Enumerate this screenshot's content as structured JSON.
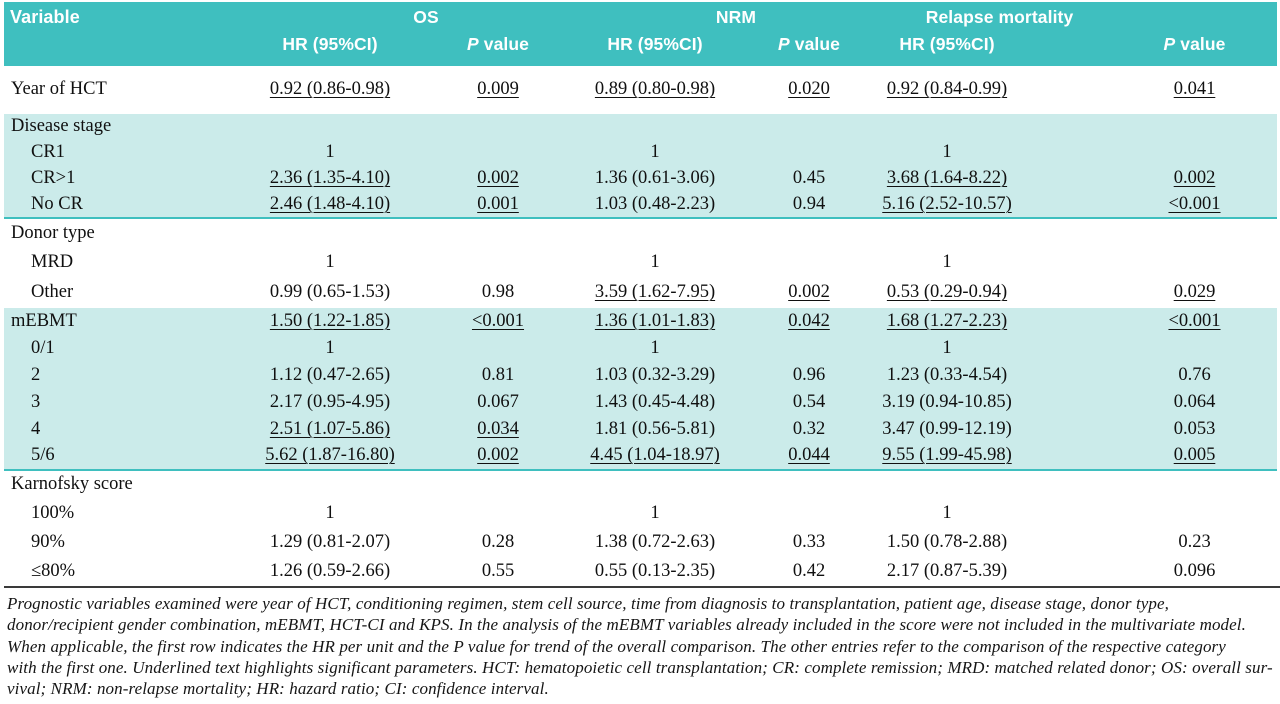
{
  "table": {
    "header": {
      "variable_label": "Variable",
      "groups": [
        {
          "label": "OS"
        },
        {
          "label": "NRM"
        },
        {
          "label": "Relapse mortality"
        }
      ],
      "hr_label": "HR (95%CI)",
      "p_italic": "P",
      "p_rest": " value"
    },
    "sections": [
      {
        "bg": "white",
        "end_rule": false,
        "rows": [
          {
            "label": "Year of HCT",
            "indent": false,
            "cells": [
              {
                "t": "0.92 (0.86-0.98)",
                "u": true
              },
              {
                "t": "0.009",
                "u": true
              },
              {
                "t": "0.89 (0.80-0.98)",
                "u": true
              },
              {
                "t": "0.020",
                "u": true
              },
              {
                "t": "0.92 (0.84-0.99)",
                "u": true
              },
              {
                "t": "0.041",
                "u": true
              }
            ]
          }
        ]
      },
      {
        "bg": "teal",
        "end_rule": true,
        "rows": [
          {
            "label": "Disease stage",
            "indent": false,
            "cells": [
              {
                "t": ""
              },
              {
                "t": ""
              },
              {
                "t": ""
              },
              {
                "t": ""
              },
              {
                "t": ""
              },
              {
                "t": ""
              }
            ]
          },
          {
            "label": "CR1",
            "indent": true,
            "cells": [
              {
                "t": "1"
              },
              {
                "t": ""
              },
              {
                "t": "1"
              },
              {
                "t": ""
              },
              {
                "t": "1"
              },
              {
                "t": ""
              }
            ]
          },
          {
            "label": "CR>1",
            "indent": true,
            "cells": [
              {
                "t": "2.36 (1.35-4.10)",
                "u": true
              },
              {
                "t": "0.002",
                "u": true
              },
              {
                "t": "1.36 (0.61-3.06)"
              },
              {
                "t": "0.45"
              },
              {
                "t": "3.68 (1.64-8.22)",
                "u": true
              },
              {
                "t": "0.002",
                "u": true
              }
            ]
          },
          {
            "label": "No CR",
            "indent": true,
            "cells": [
              {
                "t": "2.46 (1.48-4.10)",
                "u": true
              },
              {
                "t": "0.001",
                "u": true
              },
              {
                "t": "1.03 (0.48-2.23)"
              },
              {
                "t": "0.94"
              },
              {
                "t": "5.16 (2.52-10.57)",
                "u": true
              },
              {
                "t": "<0.001",
                "u": true
              }
            ]
          }
        ]
      },
      {
        "bg": "white",
        "end_rule": false,
        "rows": [
          {
            "label": "Donor type",
            "indent": false,
            "cells": [
              {
                "t": ""
              },
              {
                "t": ""
              },
              {
                "t": ""
              },
              {
                "t": ""
              },
              {
                "t": ""
              },
              {
                "t": ""
              }
            ]
          },
          {
            "label": "MRD",
            "indent": true,
            "cells": [
              {
                "t": "1"
              },
              {
                "t": ""
              },
              {
                "t": "1"
              },
              {
                "t": ""
              },
              {
                "t": "1"
              },
              {
                "t": ""
              }
            ]
          },
          {
            "label": "Other",
            "indent": true,
            "cells": [
              {
                "t": "0.99 (0.65-1.53)"
              },
              {
                "t": "0.98"
              },
              {
                "t": "3.59 (1.62-7.95)",
                "u": true
              },
              {
                "t": "0.002",
                "u": true
              },
              {
                "t": "0.53 (0.29-0.94)",
                "u": true
              },
              {
                "t": "0.029",
                "u": true
              }
            ]
          }
        ]
      },
      {
        "bg": "teal",
        "end_rule": true,
        "rows": [
          {
            "label": "mEBMT",
            "indent": false,
            "cells": [
              {
                "t": "1.50 (1.22-1.85)",
                "u": true
              },
              {
                "t": "<0.001",
                "u": true
              },
              {
                "t": "1.36 (1.01-1.83)",
                "u": true
              },
              {
                "t": "0.042",
                "u": true
              },
              {
                "t": "1.68 (1.27-2.23)",
                "u": true
              },
              {
                "t": "<0.001",
                "u": true
              }
            ]
          },
          {
            "label": "0/1",
            "indent": true,
            "cells": [
              {
                "t": "1"
              },
              {
                "t": ""
              },
              {
                "t": "1"
              },
              {
                "t": ""
              },
              {
                "t": "1"
              },
              {
                "t": ""
              }
            ]
          },
          {
            "label": "2",
            "indent": true,
            "cells": [
              {
                "t": "1.12 (0.47-2.65)"
              },
              {
                "t": "0.81"
              },
              {
                "t": "1.03 (0.32-3.29)"
              },
              {
                "t": "0.96"
              },
              {
                "t": "1.23 (0.33-4.54)"
              },
              {
                "t": "0.76"
              }
            ]
          },
          {
            "label": "3",
            "indent": true,
            "cells": [
              {
                "t": "2.17 (0.95-4.95)"
              },
              {
                "t": "0.067"
              },
              {
                "t": "1.43 (0.45-4.48)"
              },
              {
                "t": "0.54"
              },
              {
                "t": "3.19 (0.94-10.85)"
              },
              {
                "t": "0.064"
              }
            ]
          },
          {
            "label": "4",
            "indent": true,
            "cells": [
              {
                "t": "2.51 (1.07-5.86)",
                "u": true
              },
              {
                "t": "0.034",
                "u": true
              },
              {
                "t": "1.81 (0.56-5.81)"
              },
              {
                "t": "0.32"
              },
              {
                "t": "3.47 (0.99-12.19)"
              },
              {
                "t": "0.053"
              }
            ]
          },
          {
            "label": "5/6",
            "indent": true,
            "cells": [
              {
                "t": "5.62 (1.87-16.80)",
                "u": true
              },
              {
                "t": "0.002",
                "u": true
              },
              {
                "t": "4.45 (1.04-18.97)",
                "u": true
              },
              {
                "t": "0.044",
                "u": true
              },
              {
                "t": "9.55 (1.99-45.98)",
                "u": true
              },
              {
                "t": "0.005",
                "u": true
              }
            ]
          }
        ]
      },
      {
        "bg": "white",
        "end_rule": false,
        "rows": [
          {
            "label": "Karnofsky score",
            "indent": false,
            "cells": [
              {
                "t": ""
              },
              {
                "t": ""
              },
              {
                "t": ""
              },
              {
                "t": ""
              },
              {
                "t": ""
              },
              {
                "t": ""
              }
            ]
          },
          {
            "label": "100%",
            "indent": true,
            "cells": [
              {
                "t": "1"
              },
              {
                "t": ""
              },
              {
                "t": "1"
              },
              {
                "t": ""
              },
              {
                "t": "1"
              },
              {
                "t": ""
              }
            ]
          },
          {
            "label": "90%",
            "indent": true,
            "cells": [
              {
                "t": "1.29 (0.81-2.07)"
              },
              {
                "t": "0.28"
              },
              {
                "t": "1.38 (0.72-2.63)"
              },
              {
                "t": "0.33"
              },
              {
                "t": "1.50 (0.78-2.88)"
              },
              {
                "t": "0.23"
              }
            ]
          },
          {
            "label": "≤80%",
            "indent": true,
            "cells": [
              {
                "t": "1.26 (0.59-2.66)"
              },
              {
                "t": "0.55"
              },
              {
                "t": "0.55 (0.13-2.35)"
              },
              {
                "t": "0.42"
              },
              {
                "t": "2.17 (0.87-5.39)"
              },
              {
                "t": "0.096"
              }
            ]
          }
        ]
      }
    ],
    "footnote_lines": [
      "Prognostic variables examined were year of HCT, conditioning regimen, stem cell source, time from diagnosis to transplantation, patient age, disease stage, donor type,",
      "donor/recipient gender combination, mEBMT, HCT-CI and KPS. In the analysis of the mEBMT variables already included in the score were not included in the multivariate model.",
      "When applicable, the first row indicates the HR per unit and the P value for trend of the overall comparison. The other entries refer to the comparison of the respective category",
      "with the first one. Underlined text highlights significant parameters. HCT: hematopoietic cell transplantation; CR: complete remission; MRD: matched related donor; OS: overall sur-",
      "vival; NRM: non-relapse mortality; HR: hazard ratio; CI: confidence interval."
    ],
    "colors": {
      "header_teal": "#3fbfbf",
      "row_teal": "#cbebea",
      "rule_dark": "#3a3a3a",
      "header_text": "#ffffff",
      "body_text": "#101010"
    }
  }
}
